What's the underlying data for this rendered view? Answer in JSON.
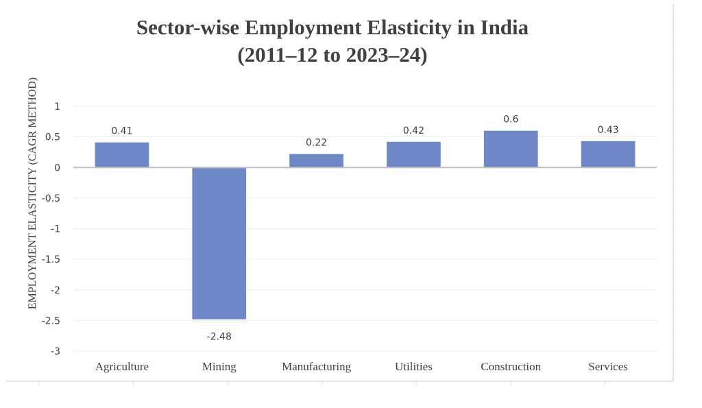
{
  "chart_data": {
    "type": "bar",
    "title": "Sector-wise Employment Elasticity in India",
    "subtitle": "(2011–12 to 2023–24)",
    "xlabel": "",
    "ylabel": "EMPLOYMENT ELASTICITY (CAGR METHOD)",
    "categories": [
      "Agriculture",
      "Mining",
      "Manufacturing",
      "Utilities",
      "Construction",
      "Services"
    ],
    "values": [
      0.41,
      -2.48,
      0.22,
      0.42,
      0.6,
      0.43
    ],
    "data_labels": [
      "0.41",
      "-2.48",
      "0.22",
      "0.42",
      "0.6",
      "0.43"
    ],
    "ylim": [
      -3,
      1
    ],
    "yticks": [
      1,
      0.5,
      0,
      -0.5,
      -1,
      -1.5,
      -2,
      -2.5,
      -3
    ],
    "ytick_labels": [
      "1",
      "0.5",
      "0",
      "-0.5",
      "-1",
      "-1.5",
      "-2",
      "-2.5",
      "-3"
    ],
    "grid": true,
    "legend": "none",
    "colors": {
      "bar": "#6f88c8",
      "zero_line": "#bfbfbf",
      "grid": "#ececec",
      "text": "#404040"
    }
  }
}
